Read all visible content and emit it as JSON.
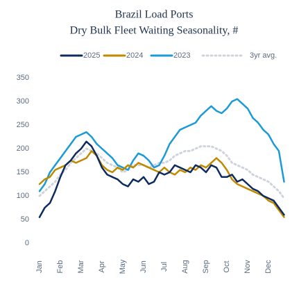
{
  "chart_data": {
    "type": "line",
    "title": "Brazil Load Ports",
    "subtitle": "Dry Bulk Fleet Waiting Seasonality, #",
    "categories": [
      "Jan",
      null,
      null,
      null,
      "Feb",
      null,
      null,
      null,
      "Mar",
      null,
      null,
      null,
      "Apr",
      null,
      null,
      null,
      "May",
      null,
      null,
      null,
      "Jun",
      null,
      null,
      null,
      "Jul",
      null,
      null,
      null,
      "Aug",
      null,
      null,
      null,
      "Sep",
      null,
      null,
      null,
      "Oct",
      null,
      null,
      null,
      "Nov",
      null,
      null,
      null,
      "Dec",
      null,
      null,
      null
    ],
    "series": [
      {
        "name": "2025",
        "color": "#0d2b5e",
        "dash": false,
        "values": [
          55,
          75,
          85,
          110,
          140,
          165,
          175,
          190,
          200,
          215,
          205,
          185,
          160,
          145,
          140,
          135,
          125,
          120,
          135,
          130,
          140,
          125,
          130,
          150,
          145,
          150,
          165,
          160,
          155,
          150,
          165,
          160,
          150,
          165,
          160,
          140,
          140,
          145,
          130,
          135,
          125,
          115,
          110,
          100,
          95,
          90,
          75,
          60
        ]
      },
      {
        "name": "2024",
        "color": "#c08a00",
        "dash": false,
        "values": [
          125,
          135,
          140,
          155,
          160,
          165,
          175,
          170,
          175,
          180,
          195,
          185,
          165,
          155,
          150,
          160,
          155,
          165,
          160,
          170,
          165,
          160,
          155,
          150,
          160,
          150,
          145,
          155,
          150,
          160,
          155,
          165,
          160,
          170,
          180,
          170,
          155,
          135,
          125,
          120,
          115,
          110,
          105,
          100,
          90,
          85,
          70,
          55
        ]
      },
      {
        "name": "2023",
        "color": "#1a9ad6",
        "dash": false,
        "values": [
          110,
          125,
          150,
          165,
          180,
          195,
          210,
          225,
          230,
          235,
          225,
          210,
          200,
          190,
          180,
          165,
          160,
          155,
          175,
          190,
          185,
          175,
          160,
          165,
          185,
          210,
          225,
          240,
          245,
          250,
          255,
          270,
          280,
          290,
          280,
          275,
          285,
          300,
          305,
          295,
          285,
          265,
          255,
          240,
          230,
          210,
          195,
          130
        ]
      },
      {
        "name": "3yr avg.",
        "color": "#cfd4dc",
        "dash": true,
        "values": [
          100,
          110,
          120,
          130,
          145,
          155,
          170,
          180,
          190,
          200,
          195,
          190,
          180,
          170,
          165,
          160,
          150,
          155,
          165,
          165,
          165,
          160,
          165,
          170,
          170,
          175,
          185,
          190,
          195,
          195,
          200,
          205,
          205,
          205,
          200,
          195,
          185,
          170,
          165,
          160,
          155,
          145,
          140,
          135,
          130,
          120,
          110,
          95
        ]
      }
    ],
    "ylim": [
      0,
      350
    ],
    "yticks": [
      0,
      50,
      100,
      150,
      200,
      250,
      300,
      350
    ],
    "grid": false
  }
}
